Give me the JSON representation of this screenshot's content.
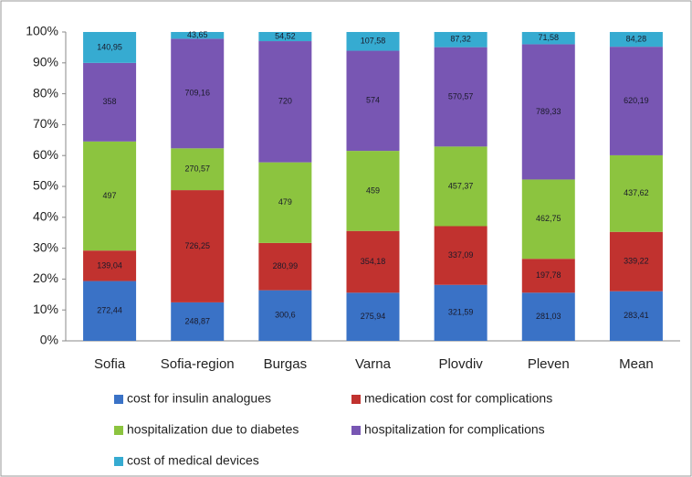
{
  "chart_data": {
    "type": "bar",
    "stacked": "percent",
    "categories": [
      "Sofia",
      "Sofia-region",
      "Burgas",
      "Varna",
      "Plovdiv",
      "Pleven",
      "Mean"
    ],
    "series": [
      {
        "name": "cost for insulin analogues",
        "color": "#3a72c6",
        "values": [
          272.44,
          248.87,
          300.6,
          275.94,
          321.59,
          281.03,
          283.41
        ],
        "value_labels": [
          "272,44",
          "248,87",
          "300,6",
          "275,94",
          "321,59",
          "281,03",
          "283,41"
        ]
      },
      {
        "name": "medication cost for complications",
        "color": "#c1322f",
        "values": [
          139.04,
          726.25,
          280.99,
          354.18,
          337.09,
          197.78,
          339.22
        ],
        "value_labels": [
          "139,04",
          "726,25",
          "280,99",
          "354,18",
          "337,09",
          "197,78",
          "339,22"
        ]
      },
      {
        "name": "hospitalization due to diabetes",
        "color": "#8cc43f",
        "values": [
          497,
          270.57,
          479,
          459,
          457.37,
          462.75,
          437.62
        ],
        "value_labels": [
          "497",
          "270,57",
          "479",
          "459",
          "457,37",
          "462,75",
          "437,62"
        ]
      },
      {
        "name": "hospitalization for complications",
        "color": "#7856b3",
        "values": [
          358,
          709.16,
          720,
          574,
          570.57,
          789.33,
          620.19
        ],
        "value_labels": [
          "358",
          "709,16",
          "720",
          "574",
          "570,57",
          "789,33",
          "620,19"
        ]
      },
      {
        "name": "cost of medical devices",
        "color": "#36abd1",
        "values": [
          140.95,
          43.65,
          54.52,
          107.58,
          87.32,
          71.58,
          84.28
        ],
        "value_labels": [
          "140,95",
          "43,65",
          "54,52",
          "107,58",
          "87,32",
          "71,58",
          "84,28"
        ]
      }
    ],
    "ylim": [
      0,
      100
    ],
    "yticks": [
      {
        "value": 0,
        "label": "0%"
      },
      {
        "value": 10,
        "label": "10%"
      },
      {
        "value": 20,
        "label": "20%"
      },
      {
        "value": 30,
        "label": "30%"
      },
      {
        "value": 40,
        "label": "40%"
      },
      {
        "value": 50,
        "label": "50%"
      },
      {
        "value": 60,
        "label": "60%"
      },
      {
        "value": 70,
        "label": "70%"
      },
      {
        "value": 80,
        "label": "80%"
      },
      {
        "value": 90,
        "label": "90%"
      },
      {
        "value": 100,
        "label": "100%"
      }
    ],
    "grid": false
  }
}
